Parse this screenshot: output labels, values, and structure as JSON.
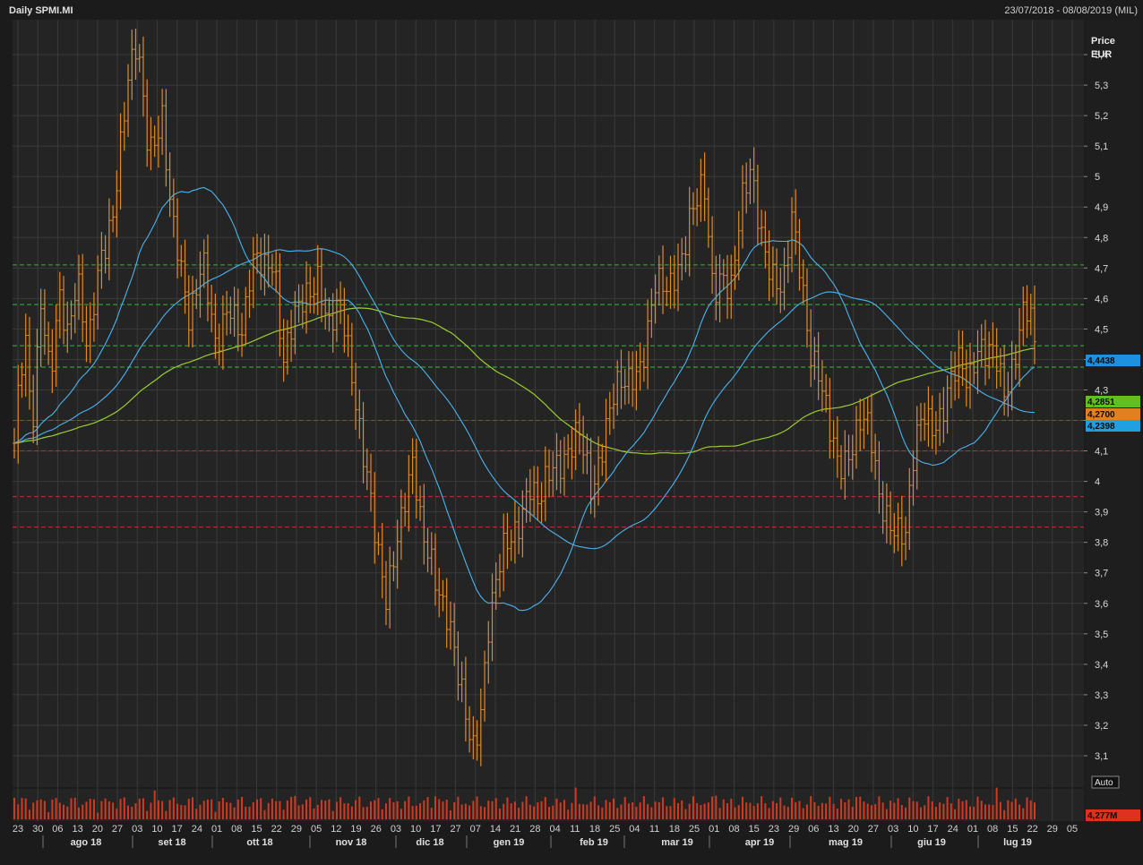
{
  "title": "Daily SPMI.MI",
  "date_range": "23/07/2018 - 08/08/2019 (MIL)",
  "axis": {
    "price_label": "Price",
    "currency_label": "EUR",
    "auto_label": "Auto"
  },
  "badges": [
    {
      "text": "4,4438",
      "color": "#1e90e0"
    },
    {
      "text": "4,2851",
      "color": "#5fc020"
    },
    {
      "text": "4,2700",
      "color": "#e08020"
    },
    {
      "text": "4,2398",
      "color": "#20a0e0"
    },
    {
      "text": "4,277M",
      "color": "#e03020"
    }
  ],
  "colors": {
    "background": "#1b1b1b",
    "plot": "#242424",
    "grid": "#3a3a3a",
    "ohlc": "#e08a2a",
    "sma_fast": "#4ab4f0",
    "sma_mid": "#4ab4f0",
    "sma_slow": "#9acd32",
    "support": "#c03030",
    "resistance": "#33b833",
    "volume": "#d03a20"
  },
  "chart_data": {
    "type": "line",
    "title": "Daily SPMI.MI",
    "ylabel": "Price EUR",
    "ylim": [
      3.05,
      5.45
    ],
    "y_ticks": [
      "3,1",
      "3,2",
      "3,3",
      "3,4",
      "3,5",
      "3,6",
      "3,7",
      "3,8",
      "3,9",
      "4",
      "4,1",
      "4,2",
      "4,3",
      "4,4",
      "4,5",
      "4,6",
      "4,7",
      "4,8",
      "4,9",
      "5",
      "5,1",
      "5,2",
      "5,3",
      "5,4"
    ],
    "y_tick_values": [
      3.1,
      3.2,
      3.3,
      3.4,
      3.5,
      3.6,
      3.7,
      3.8,
      3.9,
      4.0,
      4.1,
      4.2,
      4.3,
      4.4,
      4.5,
      4.6,
      4.7,
      4.8,
      4.9,
      5.0,
      5.1,
      5.2,
      5.3,
      5.4
    ],
    "x_day_ticks": [
      "23",
      "30",
      "06",
      "13",
      "20",
      "27",
      "03",
      "10",
      "17",
      "24",
      "01",
      "08",
      "15",
      "22",
      "29",
      "05",
      "12",
      "19",
      "26",
      "03",
      "10",
      "17",
      "27",
      "07",
      "14",
      "21",
      "28",
      "04",
      "11",
      "18",
      "25",
      "04",
      "11",
      "18",
      "25",
      "01",
      "08",
      "15",
      "23",
      "29",
      "06",
      "13",
      "20",
      "27",
      "03",
      "10",
      "17",
      "24",
      "01",
      "08",
      "15",
      "22",
      "29",
      "05"
    ],
    "x_months": [
      "ago 18",
      "set 18",
      "ott 18",
      "nov 18",
      "dic 18",
      "gen 19",
      "feb 19",
      "mar 19",
      "apr 19",
      "mag 19",
      "giu 19",
      "lug 19"
    ],
    "price_anchors": [
      [
        0,
        4.1
      ],
      [
        5,
        4.3
      ],
      [
        12,
        4.5
      ],
      [
        20,
        4.2
      ],
      [
        30,
        4.6
      ],
      [
        40,
        4.3
      ],
      [
        50,
        4.6
      ],
      [
        60,
        4.5
      ],
      [
        70,
        4.7
      ],
      [
        82,
        4.4
      ],
      [
        95,
        4.7
      ],
      [
        110,
        4.9
      ],
      [
        118,
        5.1
      ],
      [
        127,
        5.3
      ],
      [
        137,
        5.42
      ],
      [
        150,
        5.1
      ],
      [
        165,
        5.2
      ],
      [
        175,
        4.85
      ],
      [
        185,
        4.7
      ],
      [
        195,
        4.55
      ],
      [
        210,
        4.75
      ],
      [
        225,
        4.4
      ],
      [
        240,
        4.6
      ],
      [
        255,
        4.5
      ],
      [
        265,
        4.7
      ],
      [
        280,
        4.7
      ],
      [
        290,
        4.75
      ],
      [
        300,
        4.4
      ],
      [
        310,
        4.5
      ],
      [
        325,
        4.6
      ],
      [
        340,
        4.7
      ],
      [
        350,
        4.5
      ],
      [
        365,
        4.55
      ],
      [
        375,
        4.4
      ],
      [
        385,
        4.2
      ],
      [
        395,
        4.0
      ],
      [
        405,
        3.75
      ],
      [
        415,
        3.6
      ],
      [
        425,
        3.8
      ],
      [
        435,
        3.95
      ],
      [
        445,
        4.05
      ],
      [
        455,
        3.8
      ],
      [
        465,
        3.75
      ],
      [
        475,
        3.65
      ],
      [
        485,
        3.55
      ],
      [
        495,
        3.35
      ],
      [
        505,
        3.2
      ],
      [
        512,
        3.13
      ],
      [
        520,
        3.25
      ],
      [
        530,
        3.55
      ],
      [
        545,
        3.75
      ],
      [
        560,
        3.85
      ],
      [
        575,
        4.0
      ],
      [
        585,
        3.9
      ],
      [
        600,
        4.05
      ],
      [
        615,
        4.1
      ],
      [
        630,
        4.15
      ],
      [
        645,
        3.95
      ],
      [
        660,
        4.2
      ],
      [
        670,
        4.3
      ],
      [
        685,
        4.3
      ],
      [
        700,
        4.4
      ],
      [
        715,
        4.65
      ],
      [
        730,
        4.6
      ],
      [
        745,
        4.75
      ],
      [
        755,
        4.9
      ],
      [
        770,
        4.95
      ],
      [
        780,
        4.6
      ],
      [
        790,
        4.7
      ],
      [
        800,
        4.65
      ],
      [
        812,
        4.9
      ],
      [
        822,
        5.0
      ],
      [
        832,
        4.85
      ],
      [
        845,
        4.7
      ],
      [
        858,
        4.6
      ],
      [
        868,
        4.85
      ],
      [
        878,
        4.7
      ],
      [
        888,
        4.45
      ],
      [
        898,
        4.35
      ],
      [
        910,
        4.15
      ],
      [
        920,
        4.05
      ],
      [
        930,
        4.1
      ],
      [
        945,
        4.2
      ],
      [
        955,
        4.15
      ],
      [
        965,
        3.95
      ],
      [
        975,
        3.9
      ],
      [
        985,
        3.85
      ],
      [
        995,
        3.8
      ],
      [
        1005,
        4.1
      ],
      [
        1015,
        4.25
      ],
      [
        1025,
        4.2
      ],
      [
        1035,
        4.2
      ],
      [
        1045,
        4.3
      ],
      [
        1055,
        4.4
      ],
      [
        1065,
        4.35
      ],
      [
        1075,
        4.45
      ],
      [
        1085,
        4.4
      ],
      [
        1095,
        4.4
      ],
      [
        1105,
        4.3
      ],
      [
        1115,
        4.4
      ],
      [
        1125,
        4.55
      ],
      [
        1133,
        4.55
      ],
      [
        1140,
        4.4
      ],
      [
        1148,
        4.35
      ],
      [
        1155,
        4.27
      ]
    ],
    "levels": {
      "resistance": [
        4.71,
        4.58,
        4.445,
        4.375
      ],
      "support": [
        4.2,
        4.1,
        3.95,
        3.85
      ]
    },
    "last_values": {
      "sma_fast": "4,4438",
      "sma_slow": "4,2851",
      "close": "4,2700",
      "sma_mid": "4,2398",
      "volume": "4,277M"
    }
  }
}
